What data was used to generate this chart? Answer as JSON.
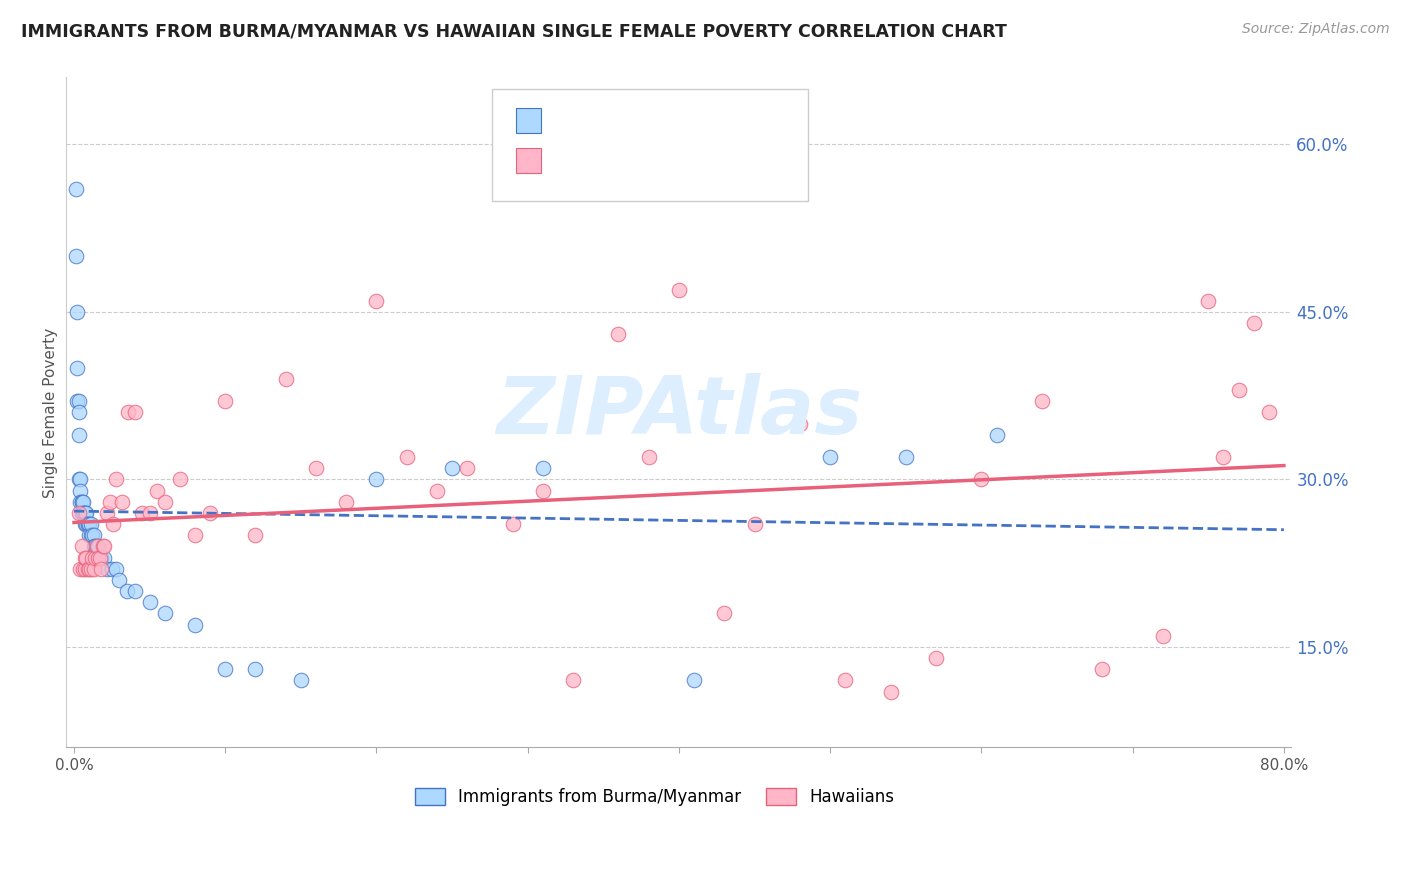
{
  "title": "IMMIGRANTS FROM BURMA/MYANMAR VS HAWAIIAN SINGLE FEMALE POVERTY CORRELATION CHART",
  "source": "Source: ZipAtlas.com",
  "ylabel": "Single Female Poverty",
  "right_yticks": [
    "60.0%",
    "45.0%",
    "30.0%",
    "15.0%"
  ],
  "right_ytick_vals": [
    0.6,
    0.45,
    0.3,
    0.15
  ],
  "xlim": [
    0.0,
    0.8
  ],
  "ylim": [
    0.06,
    0.66
  ],
  "blue_color": "#ADD8FF",
  "blue_line_color": "#4472C4",
  "pink_color": "#FFB6C8",
  "pink_line_color": "#E8607A",
  "watermark": "ZIPAtlas",
  "watermark_color": "#DDEEFF",
  "blue_scatter_x": [
    0.001,
    0.001,
    0.002,
    0.002,
    0.002,
    0.003,
    0.003,
    0.003,
    0.003,
    0.004,
    0.004,
    0.004,
    0.005,
    0.005,
    0.005,
    0.006,
    0.006,
    0.006,
    0.007,
    0.007,
    0.007,
    0.008,
    0.008,
    0.009,
    0.009,
    0.01,
    0.01,
    0.011,
    0.011,
    0.012,
    0.013,
    0.013,
    0.014,
    0.015,
    0.016,
    0.017,
    0.018,
    0.02,
    0.022,
    0.025,
    0.028,
    0.03,
    0.035,
    0.04,
    0.05,
    0.06,
    0.08,
    0.1,
    0.12,
    0.15,
    0.2,
    0.25,
    0.31,
    0.41,
    0.5,
    0.55,
    0.61
  ],
  "blue_scatter_y": [
    0.56,
    0.5,
    0.45,
    0.4,
    0.37,
    0.37,
    0.36,
    0.34,
    0.3,
    0.3,
    0.29,
    0.28,
    0.28,
    0.28,
    0.27,
    0.28,
    0.27,
    0.27,
    0.27,
    0.27,
    0.26,
    0.27,
    0.26,
    0.26,
    0.26,
    0.26,
    0.25,
    0.25,
    0.26,
    0.25,
    0.25,
    0.24,
    0.24,
    0.24,
    0.24,
    0.23,
    0.23,
    0.23,
    0.22,
    0.22,
    0.22,
    0.21,
    0.2,
    0.2,
    0.19,
    0.18,
    0.17,
    0.13,
    0.13,
    0.12,
    0.3,
    0.31,
    0.31,
    0.12,
    0.32,
    0.32,
    0.34
  ],
  "pink_scatter_x": [
    0.003,
    0.004,
    0.005,
    0.006,
    0.007,
    0.007,
    0.008,
    0.009,
    0.01,
    0.011,
    0.012,
    0.013,
    0.014,
    0.015,
    0.016,
    0.017,
    0.018,
    0.019,
    0.02,
    0.022,
    0.024,
    0.026,
    0.028,
    0.032,
    0.036,
    0.04,
    0.045,
    0.05,
    0.055,
    0.06,
    0.07,
    0.08,
    0.09,
    0.1,
    0.12,
    0.14,
    0.16,
    0.18,
    0.2,
    0.22,
    0.24,
    0.26,
    0.29,
    0.31,
    0.33,
    0.36,
    0.38,
    0.4,
    0.43,
    0.45,
    0.48,
    0.51,
    0.54,
    0.57,
    0.6,
    0.64,
    0.68,
    0.72,
    0.75,
    0.77,
    0.76,
    0.78,
    0.79
  ],
  "pink_scatter_y": [
    0.27,
    0.22,
    0.24,
    0.22,
    0.22,
    0.23,
    0.23,
    0.22,
    0.22,
    0.22,
    0.23,
    0.22,
    0.23,
    0.24,
    0.23,
    0.23,
    0.22,
    0.24,
    0.24,
    0.27,
    0.28,
    0.26,
    0.3,
    0.28,
    0.36,
    0.36,
    0.27,
    0.27,
    0.29,
    0.28,
    0.3,
    0.25,
    0.27,
    0.37,
    0.25,
    0.39,
    0.31,
    0.28,
    0.46,
    0.32,
    0.29,
    0.31,
    0.26,
    0.29,
    0.12,
    0.43,
    0.32,
    0.47,
    0.18,
    0.26,
    0.35,
    0.12,
    0.11,
    0.14,
    0.3,
    0.37,
    0.13,
    0.16,
    0.46,
    0.38,
    0.32,
    0.44,
    0.36
  ]
}
